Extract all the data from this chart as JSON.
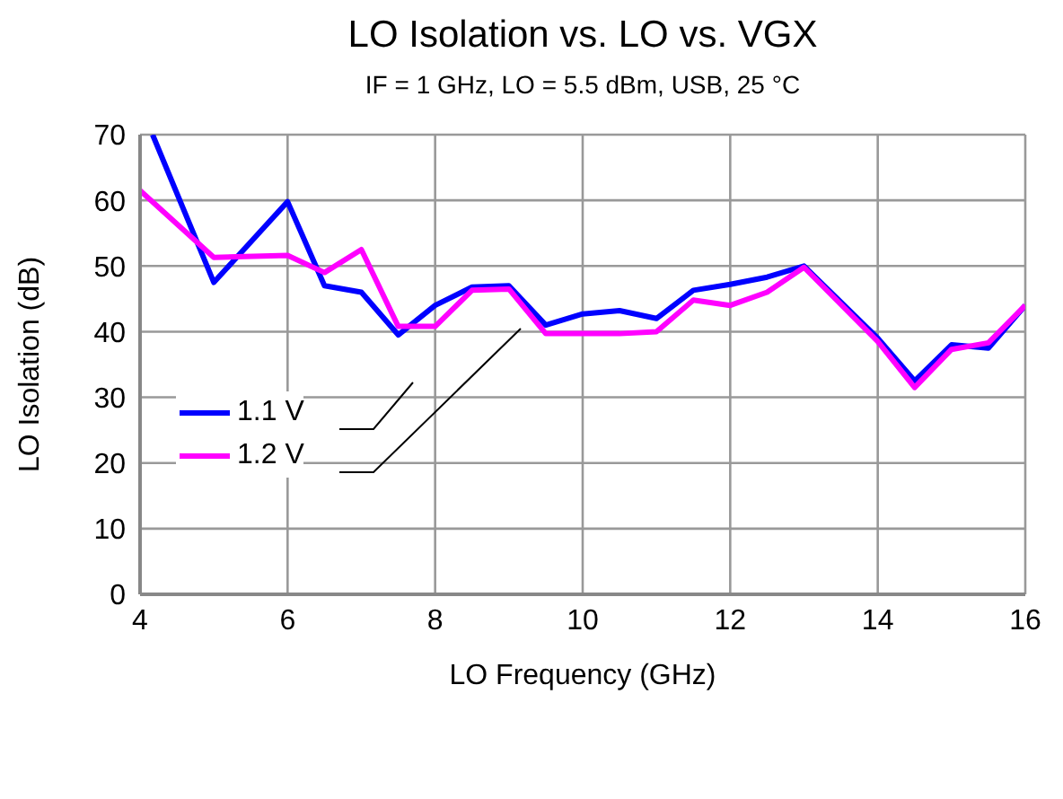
{
  "chart_data": {
    "type": "line",
    "title": "LO Isolation vs. LO vs. VGX",
    "subtitle": "IF = 1 GHz, LO = 5.5 dBm, USB, 25 °C",
    "xlabel": "LO Frequency (GHz)",
    "ylabel": "LO Isolation (dB)",
    "xlim": [
      4,
      16
    ],
    "xticks": [
      4,
      6,
      8,
      10,
      12,
      14,
      16
    ],
    "ylim": [
      0,
      70
    ],
    "yticks": [
      0,
      10,
      20,
      30,
      40,
      50,
      60,
      70
    ],
    "grid": true,
    "legend": "left",
    "marker": "none",
    "line_style": "solid",
    "series": [
      {
        "name": "1.1 V",
        "color": "#0000ff",
        "x": [
          4.17,
          5,
          6,
          6.5,
          7,
          7.5,
          8,
          8.5,
          9,
          9.5,
          10,
          10.5,
          11,
          11.5,
          12,
          12.5,
          13,
          14,
          14.5,
          15,
          15.5,
          16
        ],
        "values": [
          70,
          47.5,
          59.8,
          47,
          46,
          39.5,
          44,
          46.8,
          47,
          41,
          42.7,
          43.2,
          42,
          46.3,
          47.2,
          48.3,
          50,
          39,
          32.5,
          38,
          37.5,
          44
        ]
      },
      {
        "name": "1.2 V",
        "color": "#ff00ff",
        "x": [
          4,
          5,
          6,
          6.5,
          7,
          7.5,
          8,
          8.5,
          9,
          9.5,
          10.5,
          11,
          11.5,
          12,
          12.5,
          13,
          14,
          14.5,
          15,
          15.5,
          16
        ],
        "values": [
          61.5,
          51.3,
          51.6,
          49,
          52.5,
          40.8,
          40.8,
          46.3,
          46.5,
          39.7,
          39.7,
          40,
          44.8,
          44,
          46,
          49.8,
          38.5,
          31.5,
          37.3,
          38.3,
          44
        ]
      }
    ]
  }
}
